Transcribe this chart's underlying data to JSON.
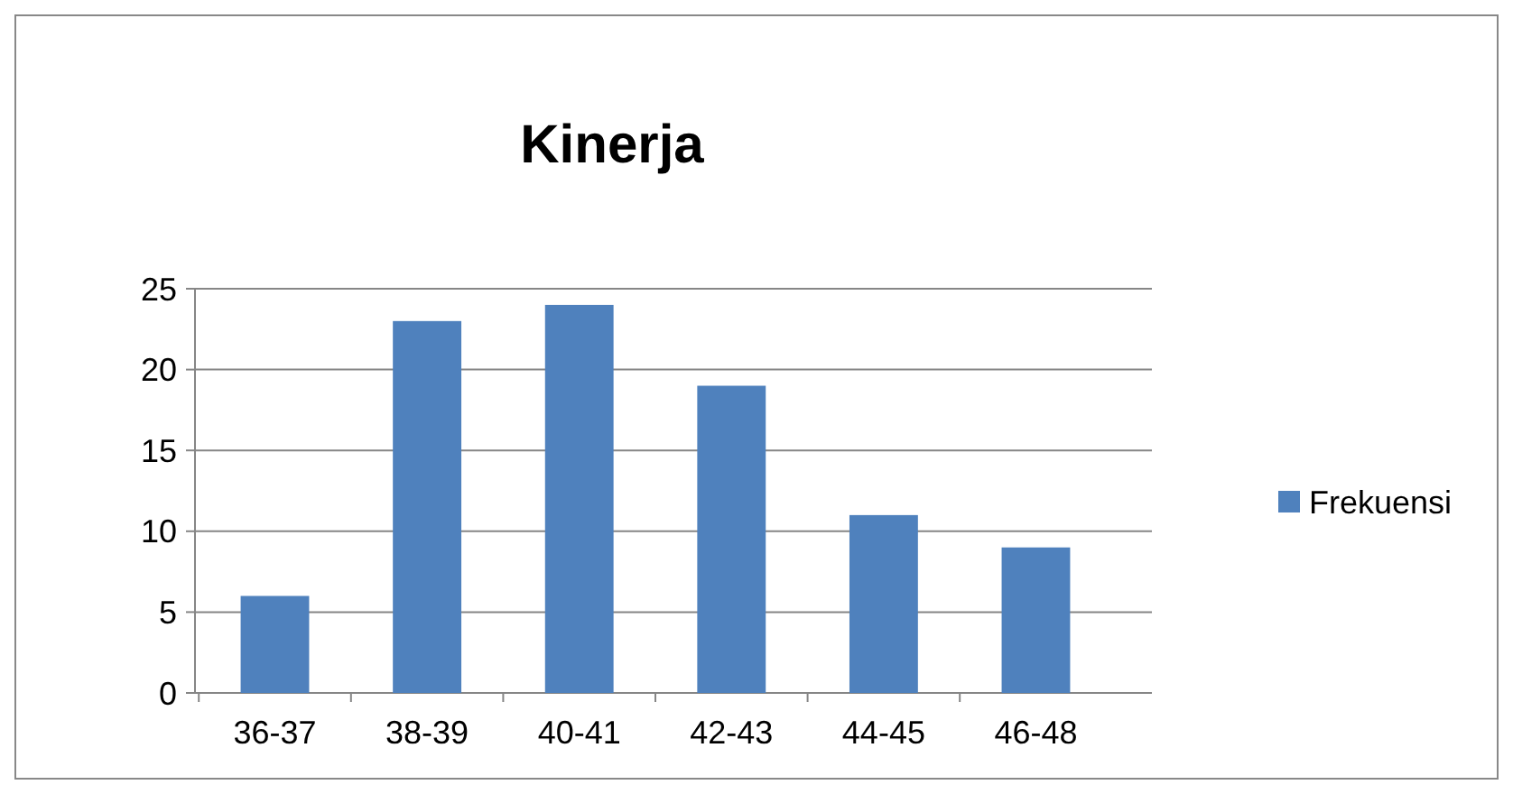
{
  "chart_data": {
    "type": "bar",
    "title": "Kinerja",
    "categories": [
      "36-37",
      "38-39",
      "40-41",
      "42-43",
      "44-45",
      "46-48"
    ],
    "series": [
      {
        "name": "Frekuensi",
        "color": "#4f81bd",
        "values": [
          6,
          23,
          24,
          19,
          11,
          9
        ]
      }
    ],
    "ylim": [
      0,
      25
    ],
    "yticks": [
      0,
      5,
      10,
      15,
      20,
      25
    ],
    "grid": "y",
    "legend": "right"
  }
}
